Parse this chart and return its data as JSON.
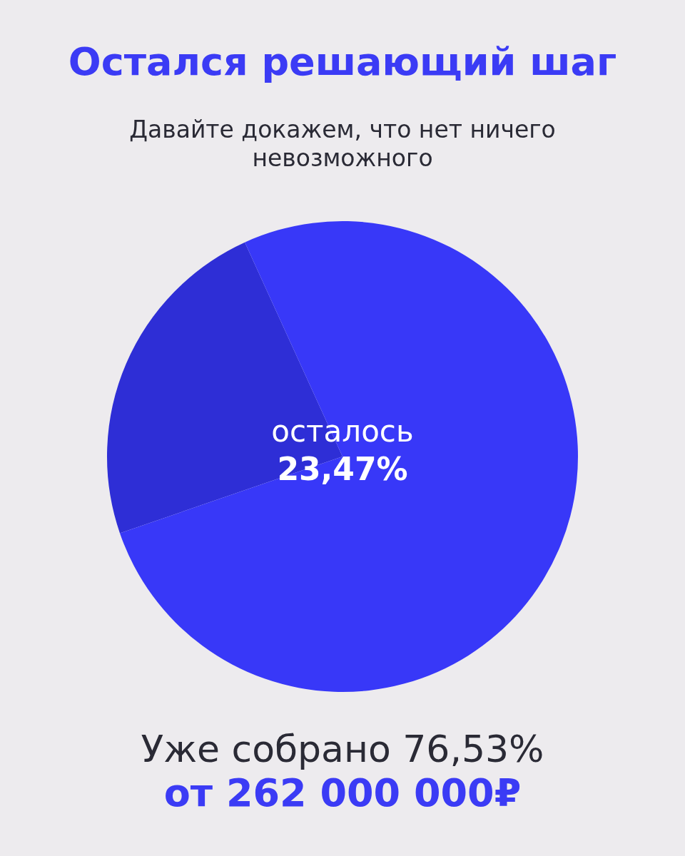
{
  "chart_data": {
    "type": "pie",
    "title": "Остался решающий шаг",
    "subtitle": "Давайте докажем, что нет ничего невозможного",
    "categories": [
      null,
      null
    ],
    "values": [
      23.47,
      76.53
    ],
    "colors": [
      "#2e2ed6",
      "#3838f8"
    ],
    "legend": false,
    "annotations": [
      "осталось",
      "23,47%",
      "Уже собрано 76,53%",
      "от 262 000 000₽"
    ]
  }
}
